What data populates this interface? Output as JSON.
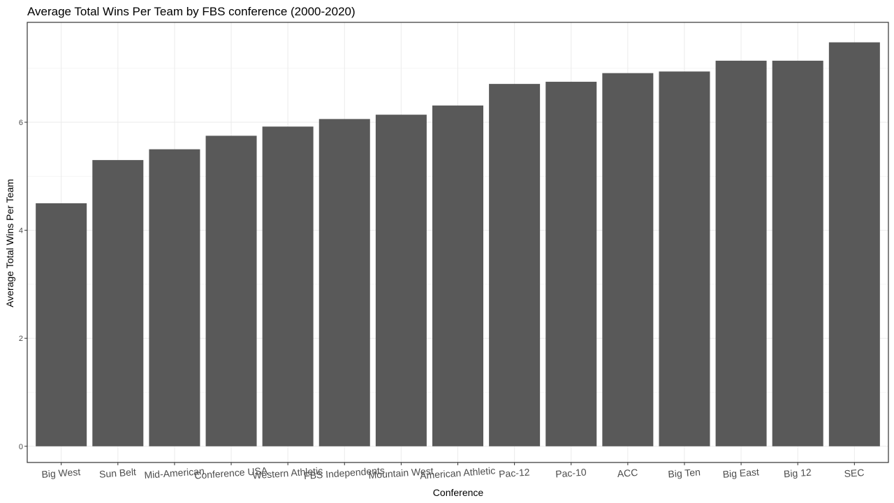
{
  "chart_data": {
    "type": "bar",
    "title": "Average Total Wins Per Team by FBS conference (2000-2020)",
    "xlabel": "Conference",
    "ylabel": "Average Total Wins Per Team",
    "categories": [
      "Big West",
      "Sun Belt",
      "Mid-American",
      "Conference USA",
      "Western Athletic",
      "FBS Independents",
      "Mountain West",
      "American Athletic",
      "Pac-12",
      "Pac-10",
      "ACC",
      "Big Ten",
      "Big East",
      "Big 12",
      "SEC"
    ],
    "values": [
      4.5,
      5.3,
      5.5,
      5.75,
      5.92,
      6.06,
      6.14,
      6.31,
      6.71,
      6.75,
      6.91,
      6.94,
      7.14,
      7.14,
      7.48
    ],
    "ylim": [
      -0.3,
      7.85
    ],
    "yticks": [
      0,
      2,
      4,
      6
    ],
    "ytick_labels": [
      "0",
      "2",
      "4",
      "6"
    ],
    "grid": true,
    "bar_color": "#595959",
    "theme": "bw"
  }
}
